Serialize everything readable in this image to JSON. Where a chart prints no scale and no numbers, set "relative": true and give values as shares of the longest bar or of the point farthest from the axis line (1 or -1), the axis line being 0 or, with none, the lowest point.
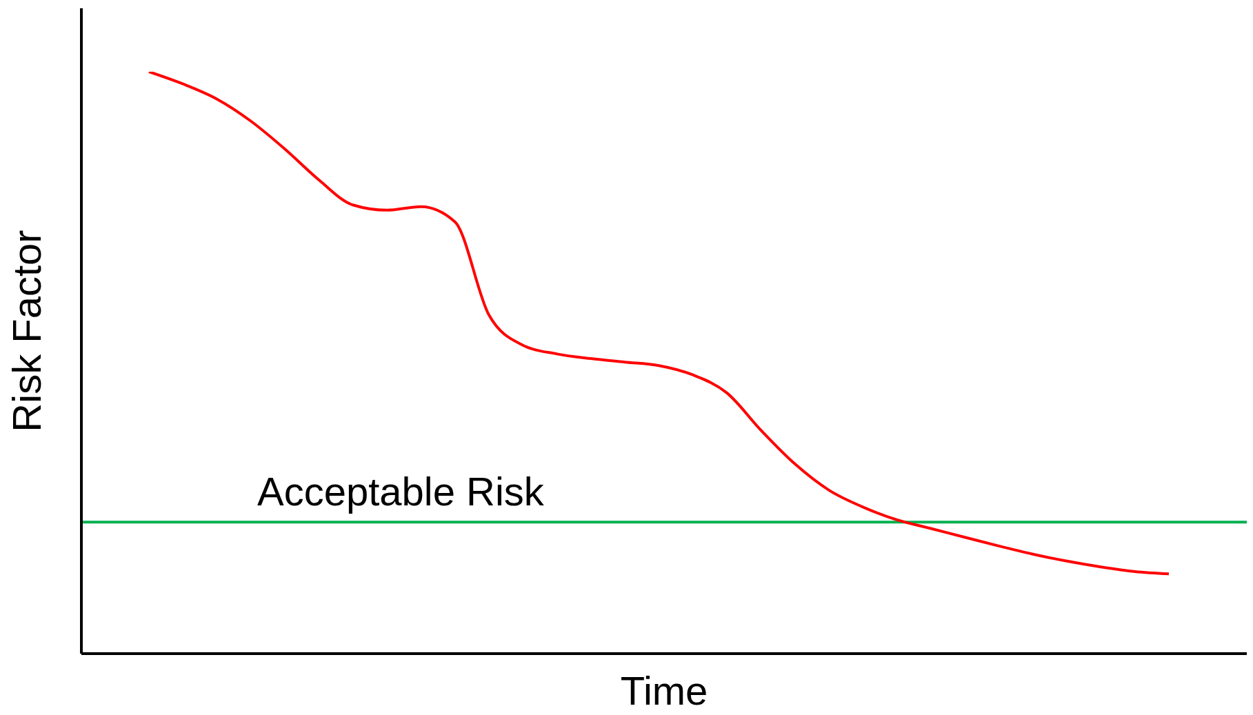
{
  "chart_data": {
    "type": "line",
    "xlabel": "Time",
    "ylabel": "Risk Factor",
    "relative": true,
    "categories": [
      null,
      null,
      null,
      null,
      null,
      null,
      null,
      null,
      null,
      null,
      null,
      null,
      null,
      null,
      null,
      null,
      null,
      null,
      null,
      null,
      null,
      null,
      null,
      null,
      null,
      null,
      null,
      null,
      null,
      null,
      null
    ],
    "series": [
      {
        "color": "#ff0000",
        "values": [
          1,
          0.979,
          0.953,
          0.915,
          0.867,
          0.814,
          0.771,
          0.762,
          0.768,
          0.742,
          0.582,
          0.53,
          0.515,
          0.507,
          0.501,
          0.495,
          0.479,
          0.448,
          0.384,
          0.326,
          0.281,
          0.252,
          0.23,
          0.215,
          0.2,
          0.185,
          0.171,
          0.159,
          0.149,
          0.141,
          0.137
        ]
      }
    ],
    "ref_lines": [
      {
        "axis": "y",
        "value": 0.226,
        "label": "Acceptable Risk",
        "color": "#00b050"
      }
    ],
    "grid": false,
    "legend": false,
    "marker": "none",
    "line_style": "solid"
  }
}
